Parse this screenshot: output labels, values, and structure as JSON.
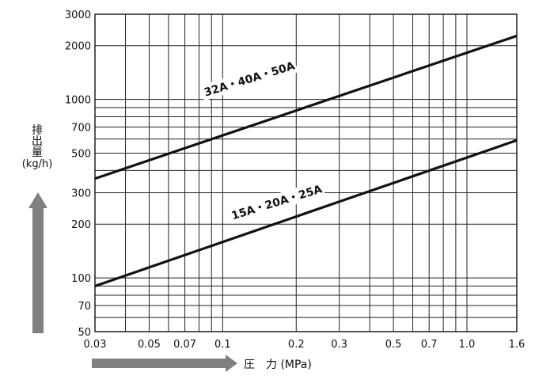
{
  "chart_data": {
    "type": "line",
    "scale": {
      "x": "log",
      "y": "log"
    },
    "xlim": [
      0.03,
      1.6
    ],
    "ylim": [
      50,
      3000
    ],
    "grid": true,
    "x_ticks": [
      0.03,
      0.04,
      0.05,
      0.06,
      0.07,
      0.08,
      0.09,
      0.1,
      0.2,
      0.3,
      0.4,
      0.5,
      0.6,
      0.7,
      0.8,
      0.9,
      1.0,
      1.6
    ],
    "x_tick_labels": [
      {
        "value": 0.03,
        "label": "0.03"
      },
      {
        "value": 0.05,
        "label": "0.05"
      },
      {
        "value": 0.07,
        "label": "0.07"
      },
      {
        "value": 0.1,
        "label": "0.1"
      },
      {
        "value": 0.2,
        "label": "0.2"
      },
      {
        "value": 0.3,
        "label": "0.3"
      },
      {
        "value": 0.5,
        "label": "0.5"
      },
      {
        "value": 0.7,
        "label": "0.7"
      },
      {
        "value": 1.0,
        "label": "1.0"
      },
      {
        "value": 1.6,
        "label": "1.6"
      }
    ],
    "y_ticks": [
      50,
      60,
      70,
      80,
      90,
      100,
      200,
      300,
      400,
      500,
      600,
      700,
      800,
      900,
      1000,
      2000,
      3000
    ],
    "y_tick_labels": [
      {
        "value": 50,
        "label": "50"
      },
      {
        "value": 70,
        "label": "70"
      },
      {
        "value": 100,
        "label": "100"
      },
      {
        "value": 200,
        "label": "200"
      },
      {
        "value": 300,
        "label": "300"
      },
      {
        "value": 500,
        "label": "500"
      },
      {
        "value": 700,
        "label": "700"
      },
      {
        "value": 1000,
        "label": "1000"
      },
      {
        "value": 2000,
        "label": "2000"
      },
      {
        "value": 3000,
        "label": "3000"
      }
    ],
    "series": [
      {
        "name": "32A・40A・50A",
        "x": [
          0.03,
          1.6
        ],
        "y": [
          360,
          2270
        ],
        "label_at": {
          "x": 0.085,
          "y": 1040,
          "angle": -17
        }
      },
      {
        "name": "15A・20A・25A",
        "x": [
          0.03,
          1.6
        ],
        "y": [
          90,
          590
        ],
        "label_at": {
          "x": 0.11,
          "y": 212,
          "angle": -17
        }
      }
    ],
    "xlabel": "圧　力 (MPa)",
    "ylabel_chars": [
      "排",
      "出",
      "量"
    ],
    "ylabel_unit": "(kg/h)",
    "arrow_color": "#808080",
    "line_color": "#111111"
  }
}
